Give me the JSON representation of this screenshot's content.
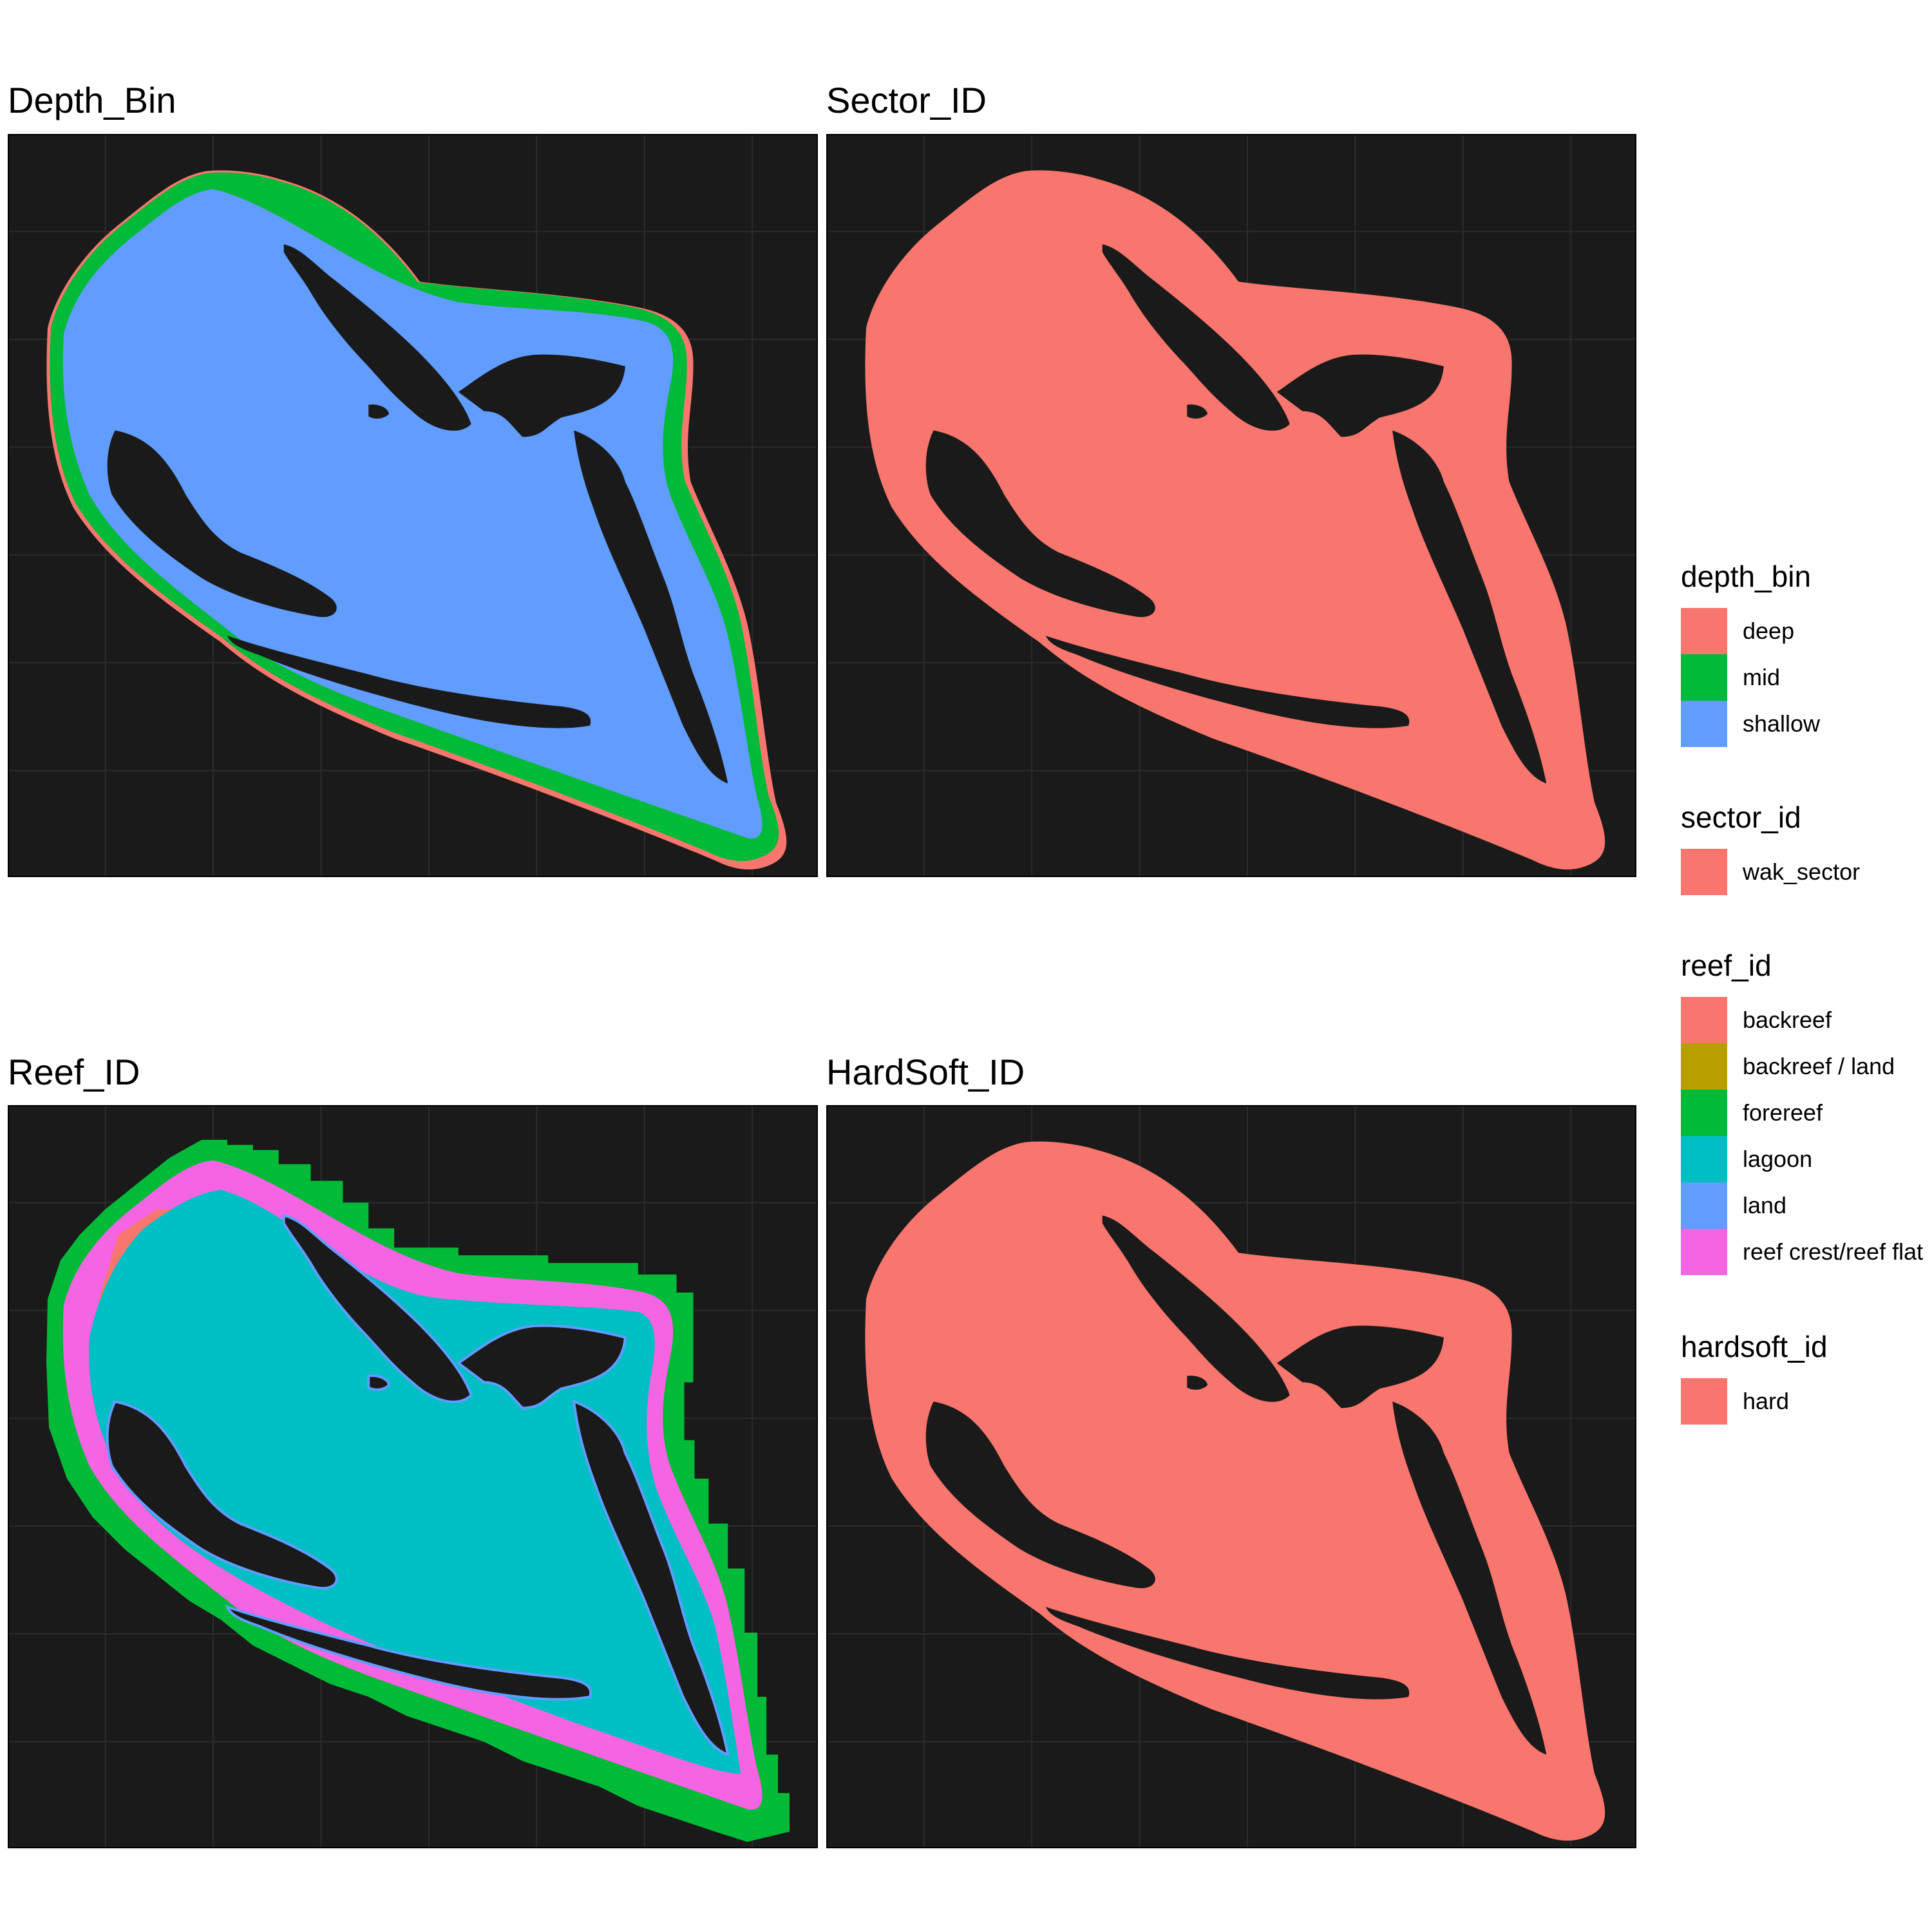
{
  "panels": [
    {
      "id": "depth",
      "title": "Depth_Bin",
      "layers": [
        "depth_bin.deep",
        "depth_bin.mid",
        "depth_bin.shallow"
      ]
    },
    {
      "id": "sector",
      "title": "Sector_ID",
      "layers": [
        "sector_id.wak_sector"
      ]
    },
    {
      "id": "reef",
      "title": "Reef_ID",
      "layers": [
        "reef_id.forereef",
        "reef_id.reef_crest",
        "reef_id.backreef",
        "reef_id.lagoon",
        "reef_id.land",
        "reef_id.backreef_land"
      ]
    },
    {
      "id": "hardsoft",
      "title": "HardSoft_ID",
      "layers": [
        "hardsoft_id.hard"
      ]
    }
  ],
  "legends": [
    {
      "title": "depth_bin",
      "items": [
        {
          "label": "deep",
          "color": "#F8766D"
        },
        {
          "label": "mid",
          "color": "#00BA38"
        },
        {
          "label": "shallow",
          "color": "#619CFF"
        }
      ]
    },
    {
      "title": "sector_id",
      "items": [
        {
          "label": "wak_sector",
          "color": "#F8766D"
        }
      ]
    },
    {
      "title": "reef_id",
      "items": [
        {
          "label": "backreef",
          "color": "#F8766D"
        },
        {
          "label": "backreef / land",
          "color": "#B79F00"
        },
        {
          "label": "forereef",
          "color": "#00BA38"
        },
        {
          "label": "lagoon",
          "color": "#00BFC4"
        },
        {
          "label": "land",
          "color": "#619CFF"
        },
        {
          "label": "reef crest/reef flat",
          "color": "#F564E3"
        }
      ]
    },
    {
      "title": "hardsoft_id",
      "items": [
        {
          "label": "hard",
          "color": "#F8766D"
        }
      ]
    }
  ],
  "colors": {
    "panel_background": "#1a1a1a",
    "island_land": "#1a1a1a",
    "grid": "#2c2c2c"
  }
}
